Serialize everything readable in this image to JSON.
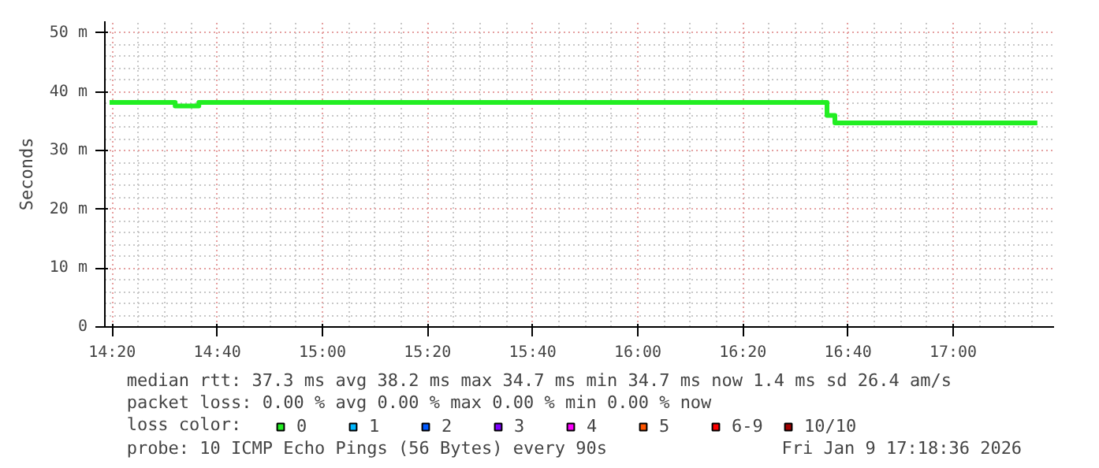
{
  "chart_data": {
    "type": "step",
    "ylabel": "Seconds",
    "legend_title": "loss color:",
    "x": [
      14.325,
      14.533,
      14.608,
      16.6,
      16.625,
      17.267
    ],
    "series": [
      {
        "name": "0",
        "color": "#22ee22",
        "values": [
          38.2,
          37.6,
          38.2,
          36.0,
          34.7,
          34.7
        ]
      },
      {
        "name": "1",
        "color": "#00b8ff",
        "values": [
          null,
          null,
          null,
          null,
          null,
          null
        ]
      },
      {
        "name": "2",
        "color": "#0059ff",
        "values": [
          null,
          null,
          null,
          null,
          null,
          null
        ]
      },
      {
        "name": "3",
        "color": "#7e00ff",
        "values": [
          null,
          null,
          null,
          null,
          null,
          null
        ]
      },
      {
        "name": "4",
        "color": "#ff00ff",
        "values": [
          null,
          null,
          null,
          null,
          null,
          null
        ]
      },
      {
        "name": "5",
        "color": "#ff5500",
        "values": [
          null,
          null,
          null,
          null,
          null,
          null
        ]
      },
      {
        "name": "6-9",
        "color": "#ff0000",
        "values": [
          null,
          null,
          null,
          null,
          null,
          null
        ]
      },
      {
        "name": "10/10",
        "color": "#a10000",
        "values": [
          null,
          null,
          null,
          null,
          null,
          null
        ]
      }
    ],
    "xlim": [
      14.31,
      17.32
    ],
    "xticks": [
      {
        "value": 14.3333,
        "label": "14:20"
      },
      {
        "value": 14.6667,
        "label": "14:40"
      },
      {
        "value": 15.0,
        "label": "15:00"
      },
      {
        "value": 15.3333,
        "label": "15:20"
      },
      {
        "value": 15.6667,
        "label": "15:40"
      },
      {
        "value": 16.0,
        "label": "16:00"
      },
      {
        "value": 16.3333,
        "label": "16:20"
      },
      {
        "value": 16.6667,
        "label": "16:40"
      },
      {
        "value": 17.0,
        "label": "17:00"
      }
    ],
    "ylim": [
      0,
      52
    ],
    "yticks": [
      0,
      {
        "value": 10,
        "label": "10 m"
      },
      {
        "value": 20,
        "label": "20 m"
      },
      {
        "value": 30,
        "label": "30 m"
      },
      {
        "value": 40,
        "label": "40 m"
      },
      {
        "value": 50,
        "label": "50 m"
      }
    ],
    "grid": true,
    "legend": "bottom",
    "line_style": "solid",
    "annotations": [
      "median rtt:  37.3 ms avg  38.2 ms max  34.7 ms min  34.7 ms now  1.4 ms sd  26.4   am/s",
      "packet loss: 0.00 % avg  0.00 % max  0.00 % min  0.00 % now",
      "probe:       10 ICMP Echo Pings (56 Bytes) every 90s",
      "Fri Jan  9 17:18:36 2026"
    ]
  }
}
